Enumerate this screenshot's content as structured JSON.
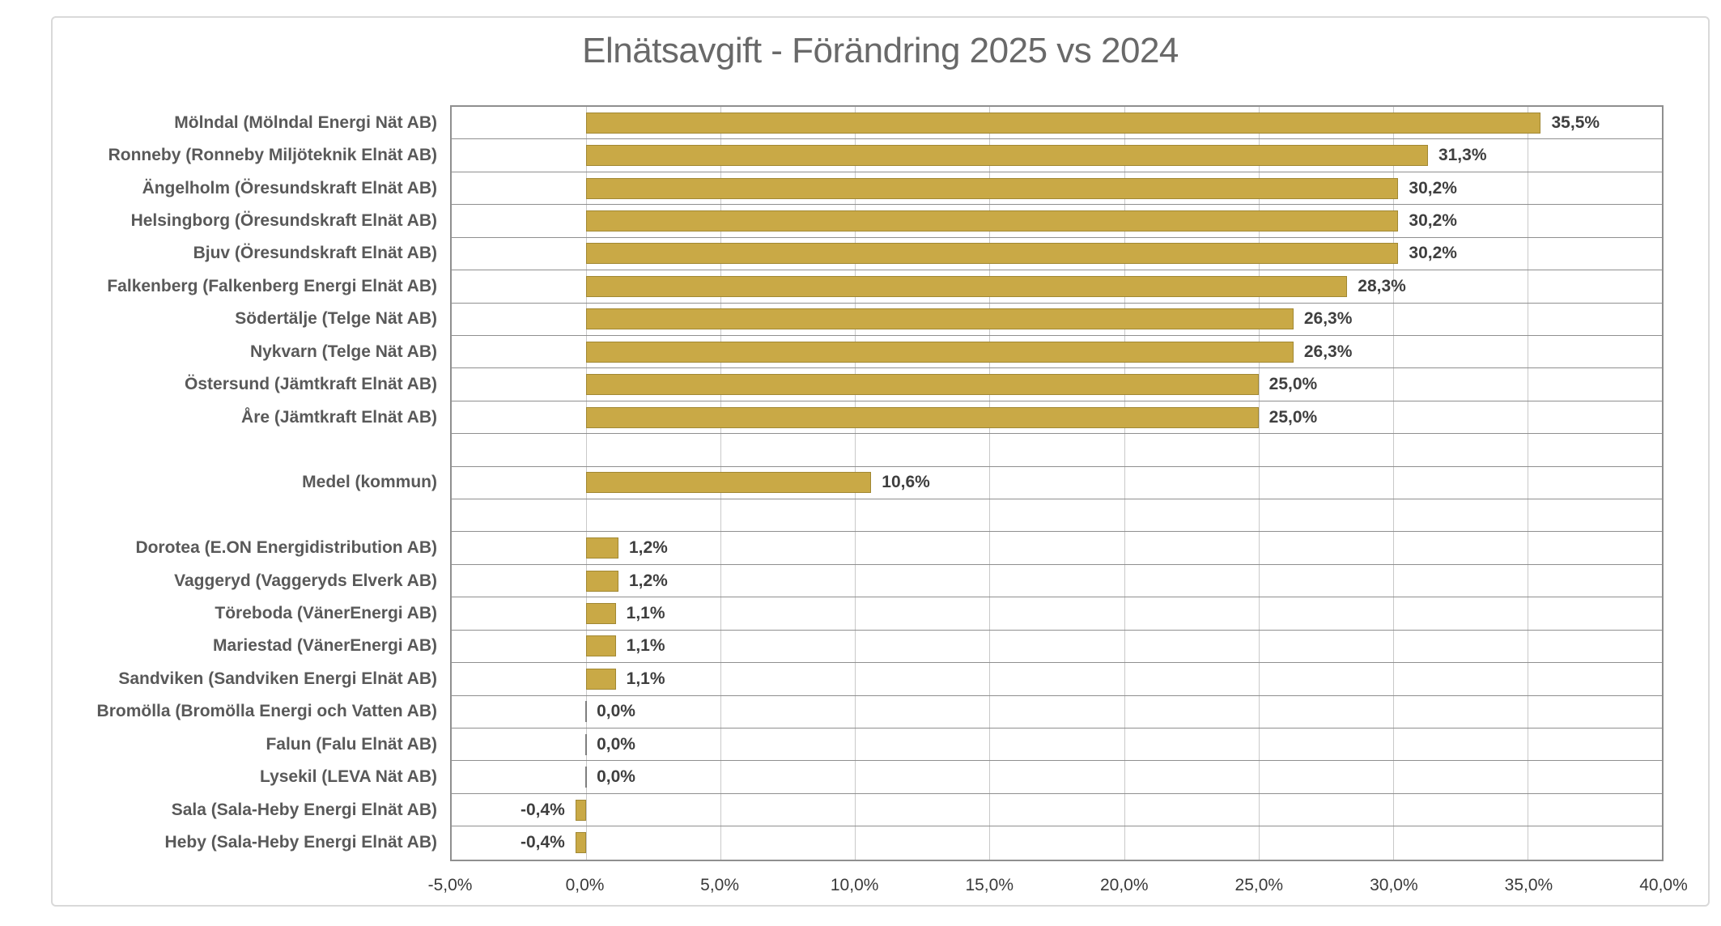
{
  "chart_data": {
    "type": "bar",
    "orientation": "horizontal",
    "title": "Elnätsavgift - Förändring 2025 vs 2024",
    "xlabel": "",
    "ylabel": "",
    "xlim": [
      -5,
      40
    ],
    "grid": true,
    "legend": false,
    "bar_color": "#c9a946",
    "bar_border_color": "#a18833",
    "zero_marker_color": "#7f7f7f",
    "gridline_color_vertical": "#c9c9c9",
    "gridline_color_horizontal": "#8f8f8f",
    "title_color": "#696969",
    "label_color": "#595959",
    "value_label_color": "#3f3f3f",
    "rows": [
      {
        "label": "Mölndal (Mölndal Energi Nät AB)",
        "value": 35.5,
        "display": "35,5%"
      },
      {
        "label": "Ronneby (Ronneby Miljöteknik Elnät AB)",
        "value": 31.3,
        "display": "31,3%"
      },
      {
        "label": "Ängelholm (Öresundskraft Elnät AB)",
        "value": 30.2,
        "display": "30,2%"
      },
      {
        "label": "Helsingborg (Öresundskraft Elnät AB)",
        "value": 30.2,
        "display": "30,2%"
      },
      {
        "label": "Bjuv (Öresundskraft Elnät AB)",
        "value": 30.2,
        "display": "30,2%"
      },
      {
        "label": "Falkenberg (Falkenberg Energi Elnät AB)",
        "value": 28.3,
        "display": "28,3%"
      },
      {
        "label": "Södertälje (Telge Nät AB)",
        "value": 26.3,
        "display": "26,3%"
      },
      {
        "label": "Nykvarn (Telge Nät AB)",
        "value": 26.3,
        "display": "26,3%"
      },
      {
        "label": "Östersund (Jämtkraft Elnät AB)",
        "value": 25.0,
        "display": "25,0%"
      },
      {
        "label": "Åre (Jämtkraft Elnät AB)",
        "value": 25.0,
        "display": "25,0%"
      },
      {
        "label": "",
        "value": null,
        "display": ""
      },
      {
        "label": "Medel (kommun)",
        "value": 10.6,
        "display": "10,6%"
      },
      {
        "label": "",
        "value": null,
        "display": ""
      },
      {
        "label": "Dorotea (E.ON Energidistribution AB)",
        "value": 1.2,
        "display": "1,2%"
      },
      {
        "label": "Vaggeryd (Vaggeryds Elverk AB)",
        "value": 1.2,
        "display": "1,2%"
      },
      {
        "label": "Töreboda (VänerEnergi AB)",
        "value": 1.1,
        "display": "1,1%"
      },
      {
        "label": "Mariestad (VänerEnergi AB)",
        "value": 1.1,
        "display": "1,1%"
      },
      {
        "label": "Sandviken (Sandviken Energi Elnät AB)",
        "value": 1.1,
        "display": "1,1%"
      },
      {
        "label": "Bromölla (Bromölla Energi och Vatten AB)",
        "value": 0.0,
        "display": "0,0%"
      },
      {
        "label": "Falun (Falu Elnät AB)",
        "value": 0.0,
        "display": "0,0%"
      },
      {
        "label": "Lysekil (LEVA Nät AB)",
        "value": 0.0,
        "display": "0,0%"
      },
      {
        "label": "Sala (Sala-Heby Energi Elnät AB)",
        "value": -0.4,
        "display": "-0,4%"
      },
      {
        "label": "Heby (Sala-Heby Energi Elnät AB)",
        "value": -0.4,
        "display": "-0,4%"
      }
    ],
    "x_axis": {
      "tick_values": [
        -5,
        0,
        5,
        10,
        15,
        20,
        25,
        30,
        35,
        40
      ],
      "tick_labels": [
        "-5,0%",
        "0,0%",
        "5,0%",
        "10,0%",
        "15,0%",
        "20,0%",
        "25,0%",
        "30,0%",
        "35,0%",
        "40,0%"
      ]
    }
  }
}
